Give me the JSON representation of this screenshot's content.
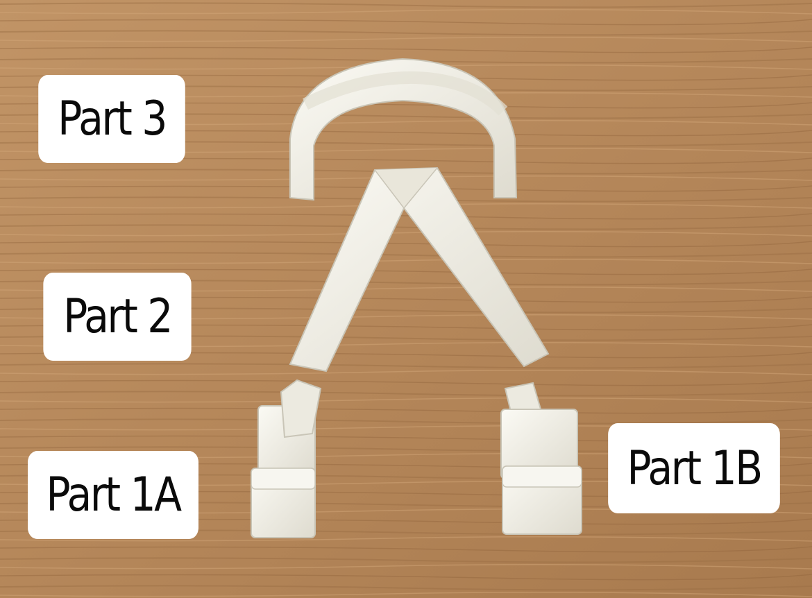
{
  "labels": {
    "part3": "Part 3",
    "part2": "Part 2",
    "part1a": "Part 1A",
    "part1b": "Part 1B"
  },
  "colors": {
    "wood": "#b78a5c",
    "plastic": "#f1efe6",
    "label_bg": "#ffffff",
    "label_text": "#0a0a0a"
  }
}
